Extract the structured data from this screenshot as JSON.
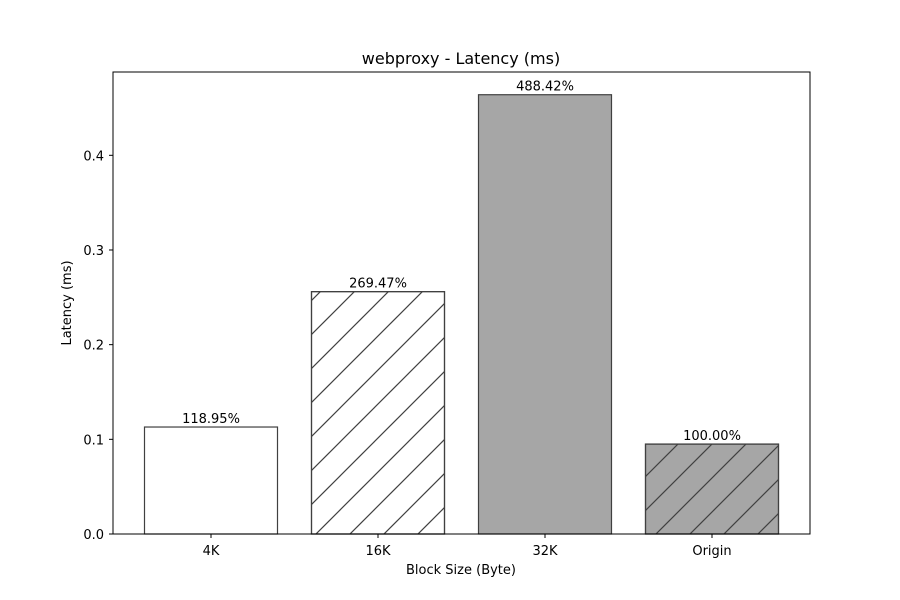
{
  "chart_data": {
    "type": "bar",
    "title": "webproxy - Latency (ms)",
    "xlabel": "Block Size (Byte)",
    "ylabel": "Latency (ms)",
    "categories": [
      "4K",
      "16K",
      "32K",
      "Origin"
    ],
    "values": [
      0.113,
      0.256,
      0.464,
      0.095
    ],
    "data_labels": [
      "118.95%",
      "269.47%",
      "488.42%",
      "100.00%"
    ],
    "ylim": [
      0,
      0.488
    ],
    "yticks": [
      0.0,
      0.1,
      0.2,
      0.3,
      0.4
    ],
    "ytick_labels": [
      "0.0",
      "0.1",
      "0.2",
      "0.3",
      "0.4"
    ],
    "bar_fill": [
      "#ffffff",
      "#ffffff",
      "#a6a6a6",
      "#a6a6a6"
    ],
    "bar_hatch": [
      "none",
      "diagonal",
      "none",
      "diagonal"
    ],
    "bar_edge_color": "#404040",
    "grid": false,
    "legend": "none"
  }
}
